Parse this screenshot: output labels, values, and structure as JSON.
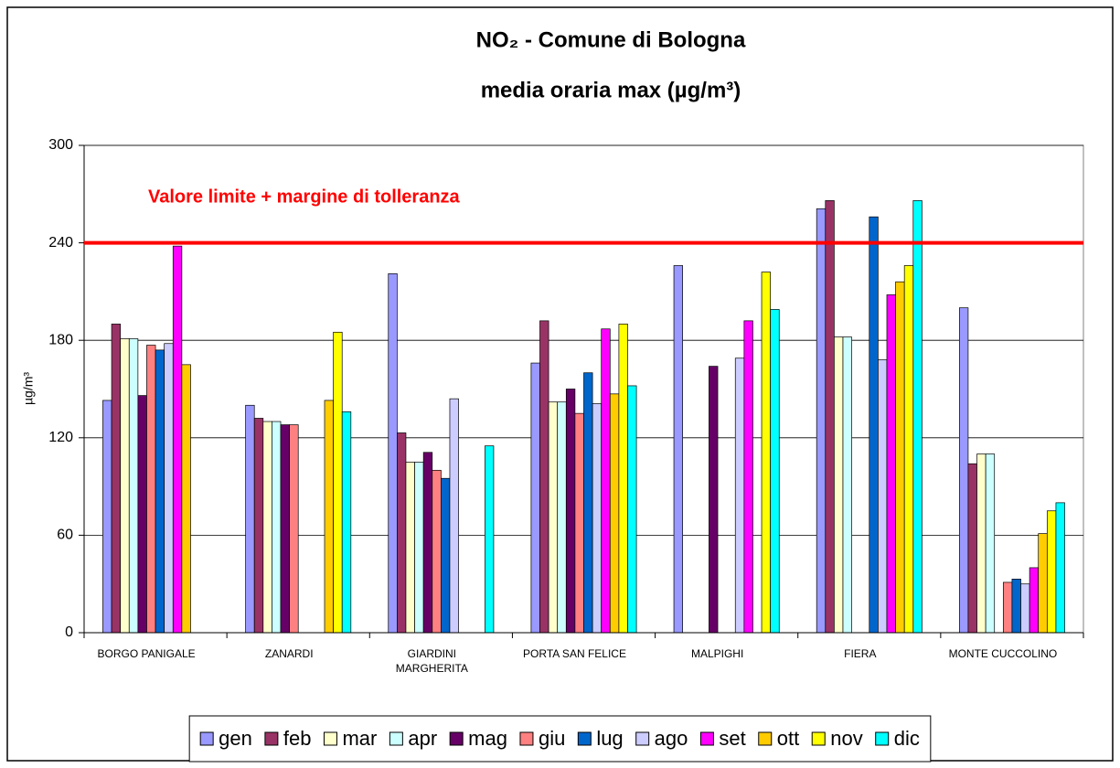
{
  "chart_data": {
    "type": "bar",
    "title": "NO₂ - Comune di Bologna",
    "subtitle": "media oraria max  (µg/m³)",
    "y_label": "µg/m³",
    "categories": [
      "BORGO PANIGALE",
      "ZANARDI",
      "GIARDINI MARGHERITA",
      "PORTA SAN FELICE",
      "MALPIGHI",
      "FIERA",
      "MONTE CUCCOLINO"
    ],
    "series": [
      {
        "name": "gen",
        "color": "#9999ff",
        "values": [
          143,
          140,
          221,
          166,
          226,
          261,
          200
        ]
      },
      {
        "name": "feb",
        "color": "#993366",
        "values": [
          190,
          132,
          123,
          192,
          null,
          266,
          104
        ]
      },
      {
        "name": "mar",
        "color": "#ffffcc",
        "values": [
          181,
          130,
          105,
          142,
          null,
          182,
          110
        ]
      },
      {
        "name": "apr",
        "color": "#ccffff",
        "values": [
          181,
          130,
          105,
          142,
          null,
          182,
          110
        ]
      },
      {
        "name": "mag",
        "color": "#660066",
        "values": [
          146,
          128,
          111,
          150,
          164,
          null,
          null
        ]
      },
      {
        "name": "giu",
        "color": "#ff8080",
        "values": [
          177,
          128,
          100,
          135,
          null,
          null,
          31
        ]
      },
      {
        "name": "lug",
        "color": "#0066cc",
        "values": [
          174,
          null,
          95,
          160,
          null,
          256,
          33
        ]
      },
      {
        "name": "ago",
        "color": "#ccccff",
        "values": [
          178,
          null,
          144,
          141,
          169,
          168,
          30
        ]
      },
      {
        "name": "set",
        "color": "#ff00ff",
        "values": [
          238,
          null,
          null,
          187,
          192,
          208,
          40
        ]
      },
      {
        "name": "ott",
        "color": "#ffcc00",
        "values": [
          165,
          143,
          null,
          147,
          null,
          216,
          61
        ]
      },
      {
        "name": "nov",
        "color": "#ffff00",
        "values": [
          null,
          185,
          null,
          190,
          222,
          226,
          75
        ]
      },
      {
        "name": "dic",
        "color": "#00ffff",
        "values": [
          null,
          136,
          115,
          152,
          199,
          266,
          80
        ]
      }
    ],
    "reference_line": {
      "value": 240,
      "color": "#ff0000",
      "label": "Valore limite + margine di tolleranza"
    },
    "ylim": [
      0,
      300
    ],
    "yticks": [
      0,
      60,
      120,
      180,
      240,
      300
    ],
    "grid": true,
    "legend": "bottom"
  }
}
